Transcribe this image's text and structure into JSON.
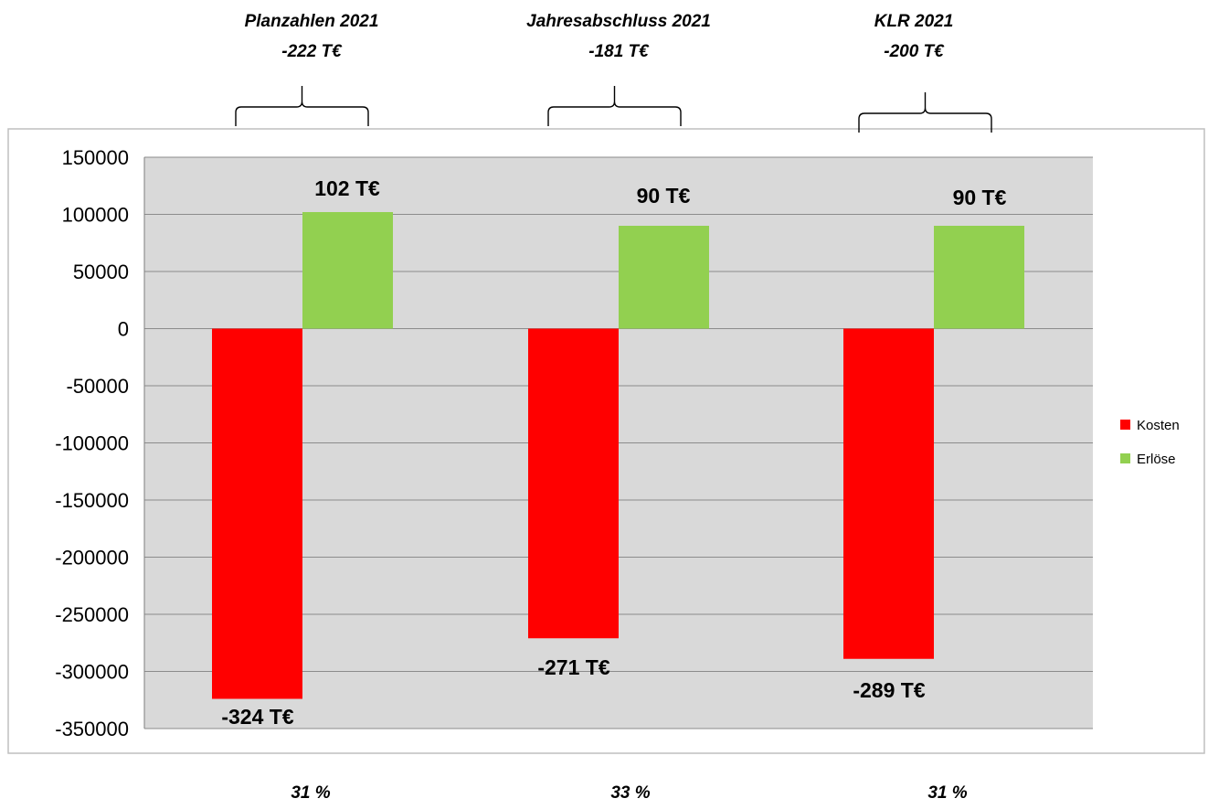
{
  "chart_data": {
    "type": "bar",
    "groups": [
      {
        "header_line1": "Planzahlen 2021",
        "header_line2": "-222 T€",
        "percent": "31 %"
      },
      {
        "header_line1": "Jahresabschluss 2021",
        "header_line2": "-181 T€",
        "percent": "33 %"
      },
      {
        "header_line1": "KLR 2021",
        "header_line2": "-200 T€",
        "percent": "31 %"
      }
    ],
    "series": [
      {
        "name": "Kosten",
        "color": "#ff0000",
        "values": [
          -324000,
          -271000,
          -289000
        ],
        "labels": [
          "-324 T€",
          "-271 T€",
          "-289 T€"
        ]
      },
      {
        "name": "Erlöse",
        "color": "#92d050",
        "values": [
          102000,
          90000,
          90000
        ],
        "labels": [
          "102 T€",
          "90 T€",
          "90 T€"
        ]
      }
    ],
    "ylim": [
      -350000,
      150000
    ],
    "yticks": [
      "150000",
      "100000",
      "50000",
      "0",
      "-50000",
      "-100000",
      "-150000",
      "-200000",
      "-250000",
      "-300000",
      "-350000"
    ],
    "ytick_values": [
      150000,
      100000,
      50000,
      0,
      -50000,
      -100000,
      -150000,
      -200000,
      -250000,
      -300000,
      -350000
    ],
    "grid": true,
    "legend_position": "right",
    "plot_background": "#d9d9d9"
  }
}
